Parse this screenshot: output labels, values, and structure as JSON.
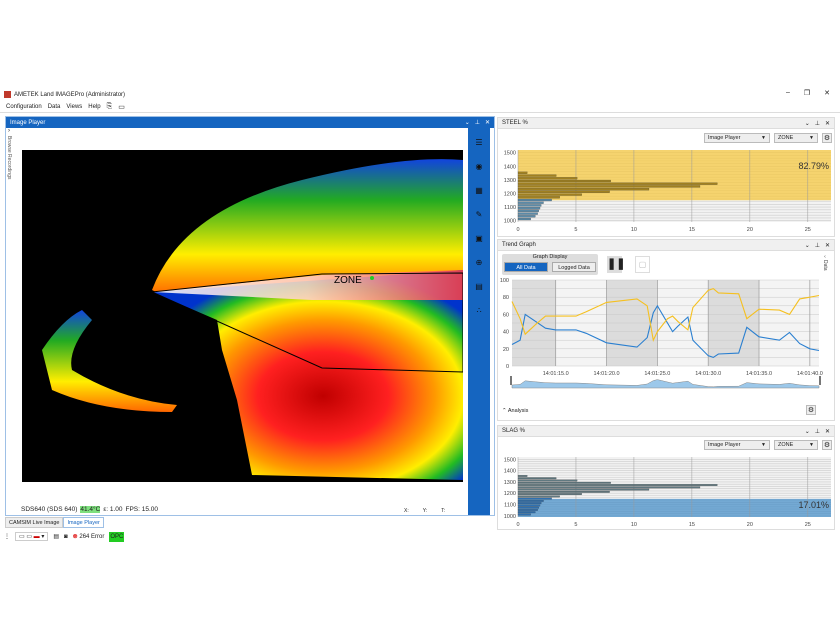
{
  "window": {
    "title": "AMETEK Land IMAGEPro (Administrator)",
    "min": "–",
    "max": "❐",
    "close": "✕"
  },
  "menu": [
    "Configuration",
    "Data",
    "Views",
    "Help"
  ],
  "image_player": {
    "title": "Image Player",
    "side_label": "Browse Recordings",
    "zone_label": "ZONE",
    "status": {
      "camera": "SDS640 (SDS 640)",
      "temp": "41.4°C",
      "emissivity": "ε: 1.00",
      "fps": "FPS: 15.00",
      "x": "X:",
      "y": "Y:",
      "t": "T:"
    },
    "tools": [
      "menu-icon",
      "play-circle-icon",
      "grid-icon",
      "palette-icon",
      "image-icon",
      "zoom-icon",
      "report-icon",
      "dots-icon"
    ]
  },
  "tabs": [
    "CAMSIM Live Image",
    "Image Player"
  ],
  "statusbar": {
    "errors": "264 Error",
    "opc": "OPC"
  },
  "colors": {
    "accent": "#1565c0",
    "steel": "#f5c842",
    "slag": "#4a90c8",
    "temp_ok": "#7ee07e",
    "opc": "#22cc22"
  },
  "steel": {
    "title": "STEEL %",
    "source": "Image Player",
    "zone": "ZONE",
    "percent": "82.79%"
  },
  "slag": {
    "title": "SLAG %",
    "source": "Image Player",
    "zone": "ZONE",
    "percent": "17.01%"
  },
  "trend": {
    "title": "Trend Graph",
    "graph_display": "Graph Display",
    "all_data": "All Data",
    "logged_data": "Logged Data",
    "data_tab": "Data",
    "analysis": "Analysis"
  },
  "chart_data": [
    {
      "type": "bar",
      "orientation": "horizontal",
      "title": "STEEL %",
      "xlim": [
        0,
        27
      ],
      "ylim": [
        990,
        1520
      ],
      "xticks": [
        "0",
        "5",
        "10",
        "15",
        "20",
        "25"
      ],
      "yticks": [
        "1000",
        "1100",
        "1200",
        "1300",
        "1400",
        "1500"
      ],
      "threshold": 1150,
      "region": "above",
      "bins": [
        1010,
        1030,
        1050,
        1070,
        1090,
        1110,
        1130,
        1150,
        1170,
        1190,
        1210,
        1230,
        1250,
        1270,
        1290,
        1310,
        1330,
        1350
      ],
      "values": [
        1.1,
        1.5,
        1.7,
        1.8,
        1.9,
        2.0,
        2.2,
        2.9,
        3.6,
        5.5,
        7.9,
        11.3,
        15.7,
        17.2,
        8.0,
        5.1,
        3.3,
        0.8
      ]
    },
    {
      "type": "line",
      "title": "Trend Graph",
      "ylim": [
        0,
        100
      ],
      "yticks": [
        "0",
        "20",
        "40",
        "60",
        "80",
        "100"
      ],
      "xticks": [
        "14:01:15.0",
        "14:01:20.0",
        "14:01:25.0",
        "14:01:30.0",
        "14:01:35.0",
        "14:01:40.0"
      ],
      "xlim": [
        "14:01:10.7",
        "14:01:40.9"
      ],
      "x": [
        "14:01:10.7",
        "14:01:11.5",
        "14:01:12.0",
        "14:01:13.0",
        "14:01:14.0",
        "14:01:15.0",
        "14:01:17.0",
        "14:01:18.0",
        "14:01:20.0",
        "14:01:23.0",
        "14:01:24.0",
        "14:01:24.6",
        "14:01:25.0",
        "14:01:26.0",
        "14:01:26.5",
        "14:01:27.0",
        "14:01:28.0",
        "14:01:28.5",
        "14:01:30.0",
        "14:01:30.5",
        "14:01:31.0",
        "14:01:33.0",
        "14:01:33.8",
        "14:01:35.0",
        "14:01:37.0",
        "14:01:38.0",
        "14:01:39.0",
        "14:01:40.0",
        "14:01:40.9"
      ],
      "series": [
        {
          "color": "#2a7fd0",
          "values": [
            25,
            30,
            60,
            52,
            44,
            42,
            42,
            38,
            27,
            22,
            33,
            62,
            70,
            50,
            40,
            46,
            57,
            30,
            12,
            10,
            14,
            15,
            45,
            34,
            30,
            39,
            26,
            20,
            18
          ]
        },
        {
          "color": "#f5c020",
          "values": [
            75,
            55,
            37,
            48,
            58,
            58,
            58,
            63,
            74,
            78,
            70,
            30,
            40,
            55,
            58,
            52,
            42,
            68,
            88,
            90,
            85,
            84,
            55,
            66,
            65,
            60,
            78,
            80,
            82
          ]
        }
      ]
    },
    {
      "type": "bar",
      "orientation": "horizontal",
      "title": "SLAG %",
      "xlim": [
        0,
        27
      ],
      "ylim": [
        990,
        1520
      ],
      "xticks": [
        "0",
        "5",
        "10",
        "15",
        "20",
        "25"
      ],
      "yticks": [
        "1000",
        "1100",
        "1200",
        "1300",
        "1400",
        "1500"
      ],
      "threshold": 1150,
      "region": "below",
      "bins": [
        1010,
        1030,
        1050,
        1070,
        1090,
        1110,
        1130,
        1150,
        1170,
        1190,
        1210,
        1230,
        1250,
        1270,
        1290,
        1310,
        1330,
        1350
      ],
      "values": [
        1.1,
        1.5,
        1.7,
        1.8,
        1.9,
        2.0,
        2.2,
        2.9,
        3.6,
        5.5,
        7.9,
        11.3,
        15.7,
        17.2,
        8.0,
        5.1,
        3.3,
        0.8
      ]
    }
  ]
}
